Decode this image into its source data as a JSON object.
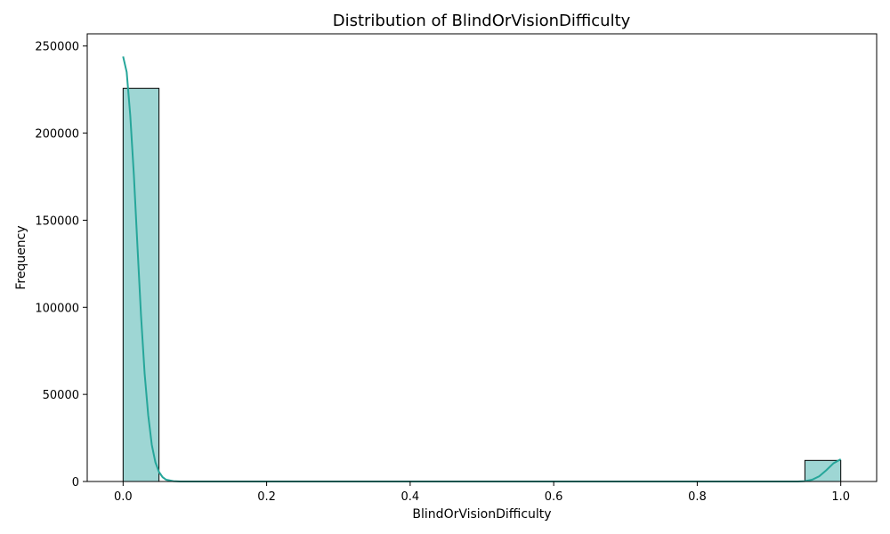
{
  "chart_data": {
    "type": "bar",
    "title": "Distribution of BlindOrVisionDifficulty",
    "xlabel": "BlindOrVisionDifficulty",
    "ylabel": "Frequency",
    "xlim": [
      -0.05,
      1.05
    ],
    "ylim": [
      0,
      257000
    ],
    "xticks": [
      0.0,
      0.2,
      0.4,
      0.6,
      0.8,
      1.0
    ],
    "xtick_labels": [
      "0.0",
      "0.2",
      "0.4",
      "0.6",
      "0.8",
      "1.0"
    ],
    "yticks": [
      0,
      50000,
      100000,
      150000,
      200000,
      250000
    ],
    "ytick_labels": [
      "0",
      "50000",
      "100000",
      "150000",
      "200000",
      "250000"
    ],
    "bins": [
      {
        "x0": 0.0,
        "x1": 0.05,
        "count": 225700
      },
      {
        "x0": 0.95,
        "x1": 1.0,
        "count": 12100
      }
    ],
    "kde": [
      [
        0.0,
        244000
      ],
      [
        0.005,
        235000
      ],
      [
        0.01,
        210000
      ],
      [
        0.015,
        176000
      ],
      [
        0.02,
        135000
      ],
      [
        0.025,
        95000
      ],
      [
        0.03,
        62000
      ],
      [
        0.035,
        38000
      ],
      [
        0.04,
        21000
      ],
      [
        0.045,
        11000
      ],
      [
        0.05,
        5500
      ],
      [
        0.055,
        2500
      ],
      [
        0.06,
        1000
      ],
      [
        0.07,
        200
      ],
      [
        0.08,
        0
      ],
      [
        0.94,
        0
      ],
      [
        0.95,
        200
      ],
      [
        0.96,
        1000
      ],
      [
        0.97,
        3000
      ],
      [
        0.98,
        6500
      ],
      [
        0.99,
        10500
      ],
      [
        1.0,
        12800
      ]
    ],
    "colors": {
      "bar_fill": "#9ed6d4",
      "bar_edge": "#000000",
      "kde_line": "#26a69a"
    },
    "grid": false,
    "legend": "none"
  }
}
